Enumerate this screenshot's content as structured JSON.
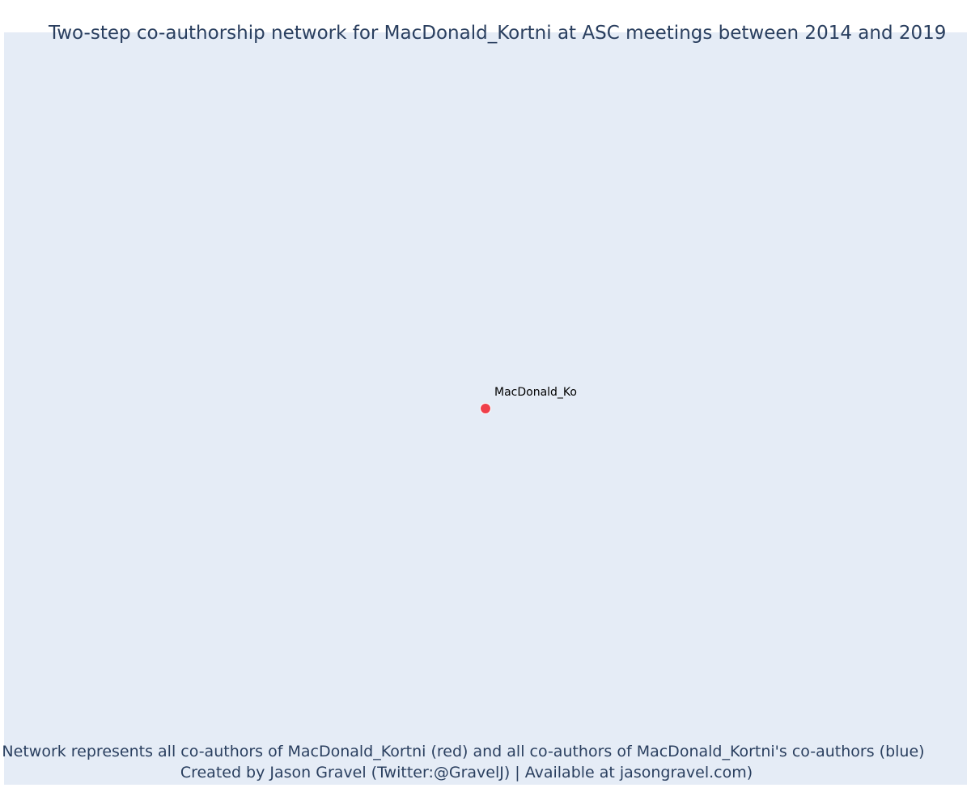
{
  "title": "Two-step co-authorship network for MacDonald_Kortni at ASC meetings between 2014 and 2019",
  "node": {
    "label": "MacDonald_Ko",
    "role": "focal author"
  },
  "footer": {
    "line1": "Network represents all co-authors of MacDonald_Kortni (red) and all co-authors of MacDonald_Kortni's co-authors (blue)",
    "line2": "Created by Jason Gravel (Twitter:@GravelJ) | Available at jasongravel.com)"
  },
  "colors": {
    "plot_background": "#e5ecf6",
    "focal_node": "#ef3f4a",
    "text": "#2a3f5f"
  }
}
